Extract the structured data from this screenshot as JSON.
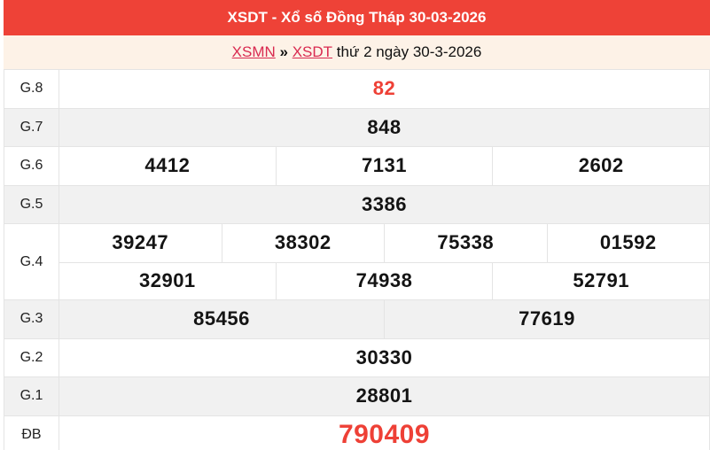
{
  "colors": {
    "accent": "#ee4237",
    "highlight": "#ee4036",
    "link": "#d92a50",
    "cream": "#fdf2e7",
    "rowAlt": "#f1f1f1",
    "border": "#e4e4e4"
  },
  "header": {
    "title": "XSDT - Xổ số Đồng Tháp 30-03-2026"
  },
  "breadcrumb": {
    "link_region": "XSMN",
    "separator": "»",
    "link_province": "XSDT",
    "suffix": "thứ 2 ngày 30-3-2026"
  },
  "results_table": {
    "rows": [
      {
        "label": "G.8",
        "lines": [
          [
            "82"
          ]
        ],
        "highlight": true
      },
      {
        "label": "G.7",
        "lines": [
          [
            "848"
          ]
        ]
      },
      {
        "label": "G.6",
        "lines": [
          [
            "4412",
            "7131",
            "2602"
          ]
        ]
      },
      {
        "label": "G.5",
        "lines": [
          [
            "3386"
          ]
        ]
      },
      {
        "label": "G.4",
        "lines": [
          [
            "39247",
            "38302",
            "75338",
            "01592"
          ],
          [
            "32901",
            "74938",
            "52791"
          ]
        ]
      },
      {
        "label": "G.3",
        "lines": [
          [
            "85456",
            "77619"
          ]
        ]
      },
      {
        "label": "G.2",
        "lines": [
          [
            "30330"
          ]
        ]
      },
      {
        "label": "G.1",
        "lines": [
          [
            "28801"
          ]
        ]
      },
      {
        "label": "ĐB",
        "lines": [
          [
            "790409"
          ]
        ],
        "highlight": true,
        "large": true
      }
    ]
  }
}
